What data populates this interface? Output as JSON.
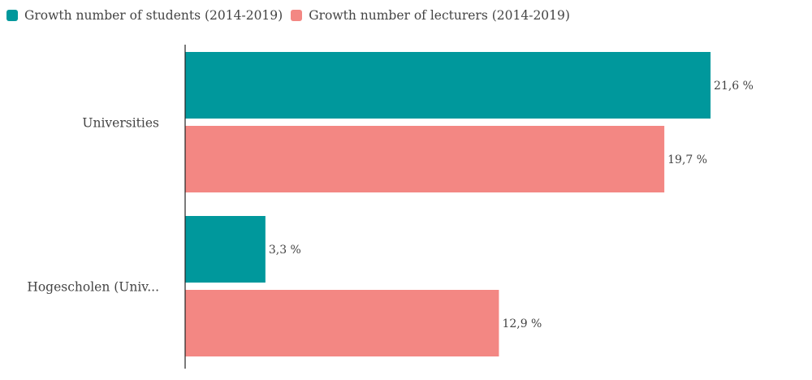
{
  "chart_data": {
    "type": "bar",
    "orientation": "horizontal",
    "categories": [
      "Universities",
      "Hogescholen (Univ..."
    ],
    "series": [
      {
        "name": "Growth number of students (2014-2019)",
        "color": "#00989c",
        "values": [
          21.6,
          3.3
        ],
        "labels": [
          "21,6 %",
          "3,3 %"
        ]
      },
      {
        "name": "Growth number of lecturers (2014-2019)",
        "color": "#f38783",
        "values": [
          19.7,
          12.9
        ],
        "labels": [
          "19,7 %",
          "12,9 %"
        ]
      }
    ],
    "xlim": [
      0,
      23
    ],
    "grid": false,
    "legend_position": "top-left"
  }
}
